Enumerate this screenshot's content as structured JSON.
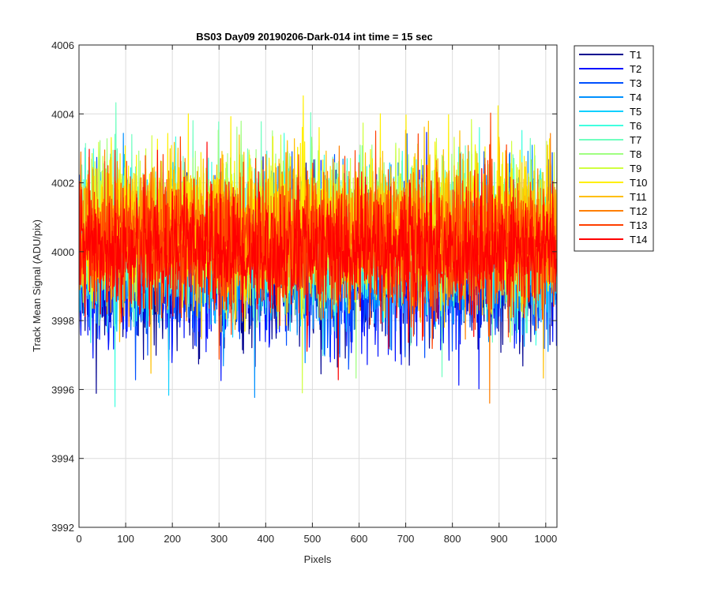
{
  "chart_data": {
    "type": "line",
    "title": "BS03 Day09 20190206-Dark-014 int time = 15 sec",
    "xlabel": "Pixels",
    "ylabel": "Track Mean Signal (ADU/pix)",
    "xlim": [
      0,
      1024
    ],
    "ylim": [
      3992,
      4006
    ],
    "xticks": [
      0,
      100,
      200,
      300,
      400,
      500,
      600,
      700,
      800,
      900,
      1000
    ],
    "yticks": [
      3992,
      3994,
      3996,
      3998,
      4000,
      4002,
      4004,
      4006
    ],
    "grid": true,
    "legend_position": "outside-top-right",
    "n_points_per_series": 1024,
    "series": [
      {
        "name": "T1",
        "color": "#00008f",
        "mean": 3999.3,
        "spread": 1.0
      },
      {
        "name": "T2",
        "color": "#0010ff",
        "mean": 3999.4,
        "spread": 1.0
      },
      {
        "name": "T3",
        "color": "#0050ff",
        "mean": 3999.6,
        "spread": 1.0
      },
      {
        "name": "T4",
        "color": "#0090ff",
        "mean": 3999.9,
        "spread": 1.0
      },
      {
        "name": "T5",
        "color": "#10d0ff",
        "mean": 4000.1,
        "spread": 1.0
      },
      {
        "name": "T6",
        "color": "#40ffe0",
        "mean": 4000.3,
        "spread": 1.0
      },
      {
        "name": "T7",
        "color": "#70ffc0",
        "mean": 4000.5,
        "spread": 1.0
      },
      {
        "name": "T8",
        "color": "#a0ff80",
        "mean": 4000.6,
        "spread": 1.0
      },
      {
        "name": "T9",
        "color": "#d0ff40",
        "mean": 4000.7,
        "spread": 1.0
      },
      {
        "name": "T10",
        "color": "#ffef00",
        "mean": 4000.7,
        "spread": 1.0
      },
      {
        "name": "T11",
        "color": "#ffbf00",
        "mean": 4000.6,
        "spread": 1.0
      },
      {
        "name": "T12",
        "color": "#ff7f00",
        "mean": 4000.4,
        "spread": 1.0
      },
      {
        "name": "T13",
        "color": "#ff3f00",
        "mean": 4000.2,
        "spread": 1.0
      },
      {
        "name": "T14",
        "color": "#ff0000",
        "mean": 4000.0,
        "spread": 0.9
      }
    ]
  }
}
